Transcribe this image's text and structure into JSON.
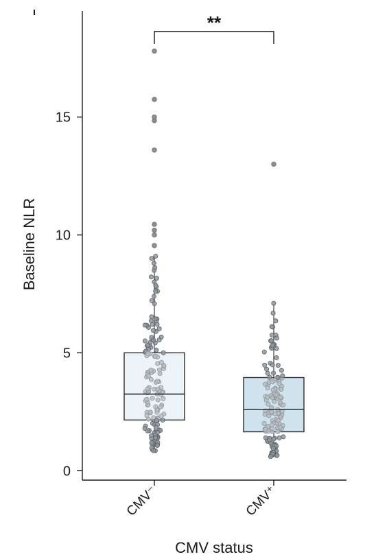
{
  "chart_data": {
    "type": "box",
    "title": "",
    "xlabel": "CMV status",
    "ylabel": "Baseline NLR",
    "ylim": [
      -0.4,
      19.5
    ],
    "yticks": [
      0,
      5,
      10,
      15
    ],
    "categories": [
      "CMV⁻",
      "CMV⁺"
    ],
    "significance": {
      "between": [
        "CMV⁻",
        "CMV⁺"
      ],
      "label": "**"
    },
    "series": [
      {
        "category": "CMV⁻",
        "box_color": "#ecf3f8",
        "q1": 2.15,
        "median": 3.25,
        "q3": 5.0,
        "whisker_low": 0.85,
        "whisker_high": 9.1,
        "outliers": [
          9.55,
          10.0,
          10.2,
          10.45,
          13.6,
          14.85,
          15.0,
          15.75,
          17.8
        ]
      },
      {
        "category": "CMV⁺",
        "box_color": "#cfe3ee",
        "q1": 1.65,
        "median": 2.6,
        "q3": 3.95,
        "whisker_low": 0.6,
        "whisker_high": 7.1,
        "outliers": [
          13.0
        ]
      }
    ],
    "grid": false,
    "legend": "none"
  }
}
